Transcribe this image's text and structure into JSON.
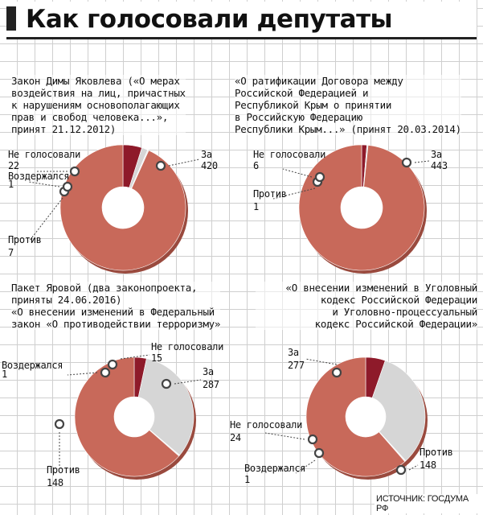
{
  "title": "Как голосовали депутаты",
  "source": "ИСТОЧНИК: ГОСДУМА РФ",
  "colors": {
    "za": "#c8695a",
    "protiv": "#d6d6d6",
    "vozd": "#f2f2f2",
    "ne_gol": "#8e1a2a"
  },
  "chart_data": [
    {
      "type": "pie",
      "title_lines": [
        "Закон Димы Яковлева («О мерах",
        "воздействия на лиц, причастных",
        "к нарушениям основополагающих",
        "прав и свобод человека...»,",
        "принят 21.12.2012)"
      ],
      "slices": [
        {
          "key": "za",
          "label": "За",
          "value": 420
        },
        {
          "key": "protiv",
          "label": "Против",
          "value": 7
        },
        {
          "key": "vozd",
          "label": "Воздержался",
          "value": 1
        },
        {
          "key": "ne_gol",
          "label": "Не голосовали",
          "value": 22
        }
      ]
    },
    {
      "type": "pie",
      "title_lines": [
        "«О ратификации Договора между",
        "Российской Федерацией и",
        "Республикой Крым о принятии",
        "в Российскую Федерацию",
        "Республики Крым...» (принят 20.03.2014)"
      ],
      "slices": [
        {
          "key": "za",
          "label": "За",
          "value": 443
        },
        {
          "key": "protiv",
          "label": "Против",
          "value": 1
        },
        {
          "key": "ne_gol",
          "label": "Не голосовали",
          "value": 6
        }
      ]
    },
    {
      "type": "pie",
      "title_lines": [
        "Пакет Яровой (два законопроекта,",
        "приняты 24.06.2016)",
        "«О внесении изменений в Федеральный",
        "закон «О противодействии терроризму»"
      ],
      "slices": [
        {
          "key": "za",
          "label": "За",
          "value": 287
        },
        {
          "key": "protiv",
          "label": "Против",
          "value": 148
        },
        {
          "key": "vozd",
          "label": "Воздержался",
          "value": 1
        },
        {
          "key": "ne_gol",
          "label": "Не голосовали",
          "value": 15
        }
      ]
    },
    {
      "type": "pie",
      "title_lines": [
        "«О внесении изменений в Уголовный",
        "кодекс Российской Федерации",
        "и Уголовно-процессуальный",
        "кодекс Российской Федерации»"
      ],
      "slices": [
        {
          "key": "za",
          "label": "За",
          "value": 277
        },
        {
          "key": "protiv",
          "label": "Против",
          "value": 148
        },
        {
          "key": "vozd",
          "label": "Воздержался",
          "value": 1
        },
        {
          "key": "ne_gol",
          "label": "Не голосовали",
          "value": 24
        }
      ]
    }
  ]
}
